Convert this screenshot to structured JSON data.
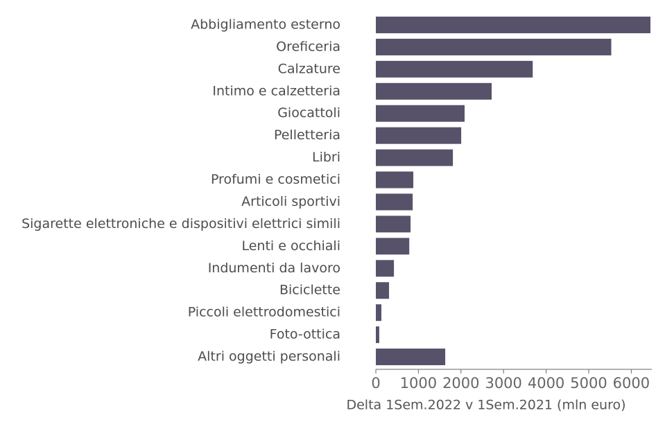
{
  "chart_data": {
    "type": "barh",
    "x_label": "Delta 1Sem.2022 v 1Sem.2021 (mln euro)",
    "categories": [
      "Abbigliamento esterno",
      "Oreficeria",
      "Calzature",
      "Intimo e calzetteria",
      "Giocattoli",
      "Pelletteria",
      "Libri",
      "Profumi e cosmetici",
      "Articoli sportivi",
      "Sigarette elettroniche e dispositivi elettrici simili",
      "Lenti e occhiali",
      "Indumenti da lavoro",
      "Biciclette",
      "Piccoli elettrodomestici",
      "Foto-ottica",
      "Altri oggetti personali"
    ],
    "values": [
      6450,
      5530,
      3685,
      2720,
      2085,
      2005,
      1810,
      880,
      865,
      815,
      785,
      425,
      310,
      130,
      80,
      1630
    ],
    "color": "#57516a",
    "xlim": [
      0,
      6450
    ],
    "xticks": [
      0,
      1000,
      2000,
      3000,
      4000,
      5000,
      6000
    ]
  }
}
